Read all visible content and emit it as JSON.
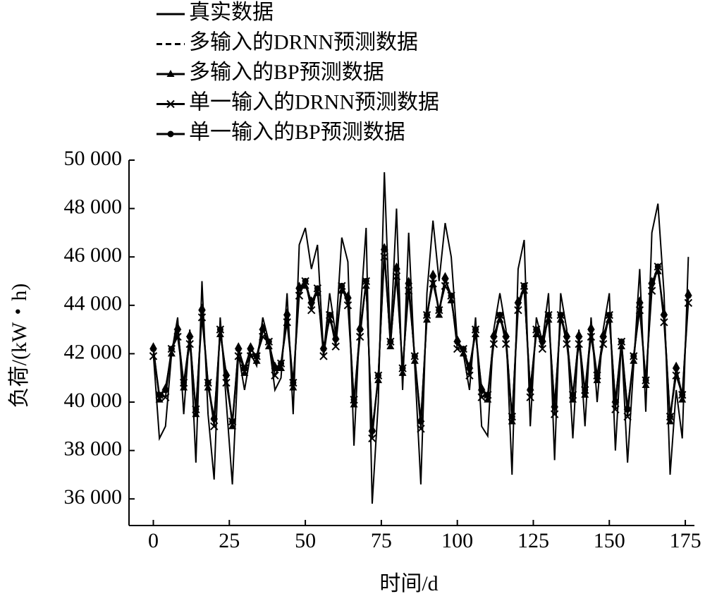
{
  "chart_data": {
    "type": "line",
    "x_label": "时间/d",
    "y_label": "负荷/(kW・h)",
    "xlim": [
      -8,
      178
    ],
    "xticks": [
      0,
      25,
      50,
      75,
      100,
      125,
      150,
      175
    ],
    "ylim": [
      34900,
      50000
    ],
    "yticks": [
      {
        "value": 36000,
        "label": "36 000"
      },
      {
        "value": 38000,
        "label": "38 000"
      },
      {
        "value": 40000,
        "label": "40 000"
      },
      {
        "value": 42000,
        "label": "42 000"
      },
      {
        "value": 44000,
        "label": "44 000"
      },
      {
        "value": 46000,
        "label": "46 000"
      },
      {
        "value": 48000,
        "label": "48 000"
      },
      {
        "value": 50000,
        "label": "50 000"
      }
    ],
    "legend": "top-left",
    "x": [
      0,
      2,
      4,
      6,
      8,
      10,
      12,
      14,
      16,
      18,
      20,
      22,
      24,
      26,
      28,
      30,
      32,
      34,
      36,
      38,
      40,
      42,
      44,
      46,
      48,
      50,
      52,
      54,
      56,
      58,
      60,
      62,
      64,
      66,
      68,
      70,
      72,
      74,
      76,
      78,
      80,
      82,
      84,
      86,
      88,
      90,
      92,
      94,
      96,
      98,
      100,
      102,
      104,
      106,
      108,
      110,
      112,
      114,
      116,
      118,
      120,
      122,
      124,
      126,
      128,
      130,
      132,
      134,
      136,
      138,
      140,
      142,
      144,
      146,
      148,
      150,
      152,
      154,
      156,
      158,
      160,
      162,
      164,
      166,
      168,
      170,
      172,
      174,
      176
    ],
    "series": [
      {
        "name": "真实数据",
        "color": "#000000",
        "dash": "solid",
        "marker": "none",
        "values": [
          42000,
          38500,
          39000,
          42000,
          43500,
          39500,
          43000,
          37500,
          45000,
          39500,
          36800,
          43500,
          40000,
          36600,
          42000,
          40500,
          42000,
          41500,
          43500,
          42500,
          40500,
          41000,
          44500,
          39500,
          46500,
          47200,
          45500,
          46500,
          42000,
          44500,
          42800,
          46800,
          45800,
          38200,
          43500,
          47200,
          35800,
          40000,
          49500,
          42500,
          48000,
          40500,
          47000,
          41500,
          36600,
          44500,
          47500,
          45000,
          47400,
          46000,
          42500,
          42000,
          40500,
          43500,
          39000,
          38600,
          43000,
          44500,
          43000,
          37000,
          45500,
          46700,
          39000,
          43500,
          42500,
          44500,
          37600,
          44500,
          43000,
          38500,
          43000,
          39000,
          43500,
          40000,
          43000,
          44500,
          38000,
          42500,
          37500,
          41500,
          45500,
          39600,
          47000,
          48200,
          44500,
          37000,
          40500,
          38500,
          46000
        ]
      },
      {
        "name": "多输入的DRNN预测数据",
        "color": "#000000",
        "dash": "dashed",
        "marker": "none",
        "values": [
          42100,
          40200,
          40400,
          42100,
          42900,
          40700,
          42600,
          39600,
          43700,
          40700,
          39200,
          42900,
          41000,
          39100,
          42100,
          41300,
          42100,
          41800,
          42900,
          42400,
          41300,
          41500,
          43500,
          40700,
          44600,
          44900,
          44000,
          44600,
          42100,
          43500,
          42500,
          44700,
          44200,
          40000,
          42900,
          44900,
          38700,
          41000,
          46200,
          42400,
          45400,
          41300,
          44800,
          41800,
          39100,
          43500,
          45100,
          43700,
          45000,
          44300,
          42400,
          42100,
          41300,
          42900,
          40400,
          40200,
          42600,
          43500,
          42600,
          39300,
          44000,
          44700,
          40400,
          42900,
          42400,
          43500,
          39700,
          43500,
          42600,
          40200,
          42600,
          40400,
          42900,
          41000,
          42600,
          43500,
          39900,
          42400,
          39600,
          41800,
          44000,
          40800,
          44800,
          45500,
          43500,
          39300,
          41300,
          40200,
          44300
        ]
      },
      {
        "name": "多输入的BP预测数据",
        "color": "#000000",
        "dash": "solid",
        "marker": "triangle",
        "values": [
          42300,
          40100,
          40600,
          42000,
          43100,
          40600,
          42800,
          39500,
          43900,
          40600,
          39400,
          42800,
          41200,
          39000,
          42300,
          41200,
          42300,
          41700,
          43100,
          42300,
          41500,
          41400,
          43700,
          40600,
          44800,
          44800,
          44200,
          44500,
          42300,
          43400,
          42700,
          44600,
          44400,
          39900,
          43100,
          44800,
          38900,
          40900,
          46400,
          42300,
          45600,
          41200,
          45000,
          41700,
          39300,
          43400,
          45300,
          43600,
          45200,
          44200,
          42600,
          42000,
          41500,
          42800,
          40600,
          40100,
          42800,
          43400,
          42800,
          39200,
          44200,
          44600,
          40600,
          42800,
          42600,
          43400,
          39900,
          43400,
          42800,
          40100,
          42800,
          40300,
          43100,
          40900,
          42800,
          43400,
          40100,
          42300,
          39800,
          41700,
          44200,
          40700,
          45000,
          45400,
          43700,
          39200,
          41500,
          40100,
          44500
        ]
      },
      {
        "name": "单一输入的DRNN预测数据",
        "color": "#000000",
        "dash": "solid",
        "marker": "x",
        "values": [
          41900,
          40300,
          40200,
          42200,
          42700,
          40800,
          42400,
          39700,
          43500,
          40800,
          39000,
          43000,
          40800,
          39200,
          41900,
          41400,
          41900,
          41900,
          42700,
          42500,
          41100,
          41600,
          43300,
          40800,
          44400,
          45000,
          43800,
          44700,
          41900,
          43600,
          42300,
          44800,
          44000,
          40100,
          42700,
          45000,
          38500,
          41100,
          46000,
          42500,
          45200,
          41400,
          44600,
          41900,
          38900,
          43600,
          44900,
          43800,
          44800,
          44400,
          42200,
          42200,
          41100,
          43000,
          40200,
          40300,
          42400,
          43600,
          42400,
          39400,
          43800,
          44800,
          40200,
          43000,
          42200,
          43600,
          39500,
          43600,
          42400,
          40300,
          42400,
          40500,
          42700,
          41100,
          42400,
          43600,
          39700,
          42500,
          39400,
          41900,
          43800,
          40900,
          44600,
          45600,
          43300,
          39400,
          41100,
          40300,
          44100
        ]
      },
      {
        "name": "单一输入的BP预测数据",
        "color": "#000000",
        "dash": "solid",
        "marker": "circle",
        "values": [
          42200,
          40300,
          40500,
          42200,
          43000,
          40800,
          42700,
          39700,
          43800,
          40800,
          39300,
          43000,
          41100,
          39200,
          42200,
          41400,
          42200,
          41900,
          43000,
          42500,
          41400,
          41600,
          43600,
          40800,
          44700,
          45000,
          44100,
          44700,
          42200,
          43600,
          42600,
          44800,
          44300,
          40100,
          43000,
          45000,
          38800,
          41100,
          46300,
          42500,
          45500,
          41400,
          44900,
          41900,
          39200,
          43600,
          45200,
          43800,
          45100,
          44400,
          42500,
          42200,
          41400,
          43000,
          40500,
          40300,
          42700,
          43600,
          42700,
          39400,
          44100,
          44800,
          40500,
          43000,
          42500,
          43600,
          39800,
          43600,
          42700,
          40300,
          42700,
          40500,
          43000,
          41100,
          42700,
          43600,
          40000,
          42500,
          39700,
          41900,
          44100,
          40900,
          44900,
          45600,
          43600,
          39400,
          41400,
          40300,
          44400
        ]
      }
    ]
  }
}
